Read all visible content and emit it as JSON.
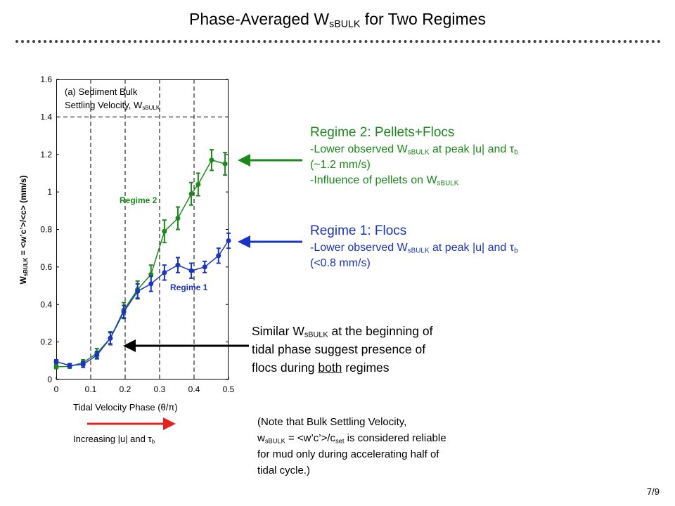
{
  "slide": {
    "title_pre": "Phase-Averaged W",
    "title_sub": "sBULK",
    "title_post": " for Two Regimes",
    "page": "7/9"
  },
  "plot": {
    "panel_line1": "(a) Sediment Bulk",
    "panel_line2_pre": "Settling Velocity, W",
    "panel_line2_sub": "sBULK",
    "ylabel_pre": "W",
    "ylabel_sub": "sBULK",
    "ylabel_post": " = <w’c’>/<c> (mm/s)",
    "xlabel": "Tidal Velocity Phase (θ/π)",
    "regime2_label": "Regime 2",
    "regime1_label": "Regime 1",
    "increasing_pre": "Increasing |u| and τ",
    "increasing_sub": "b"
  },
  "callouts": {
    "regime2": {
      "head": "Regime 2: Pellets+Flocs",
      "l1_pre": "-Lower observed W",
      "l1_sub": "sBULK",
      "l1_post": "  at peak |u| and τ",
      "l1_sub2": "b",
      "l2": "(~1.2 mm/s)",
      "l3_pre": "-Influence of pellets on W",
      "l3_sub": "sBULK"
    },
    "regime1": {
      "head": "Regime 1: Flocs",
      "l1_pre": "-Lower observed W",
      "l1_sub": "sBULK",
      "l1_post": "  at peak |u| and τ",
      "l1_sub2": "b",
      "l2": "(<0.8 mm/s)"
    },
    "similar": {
      "l1_pre": "Similar W",
      "l1_sub": "sBULK",
      "l1_post": "  at the beginning of",
      "l2": "tidal phase suggest presence of",
      "l3_pre": "flocs during ",
      "l3_under": "both",
      "l3_post": " regimes"
    },
    "note": {
      "l1": "(Note that Bulk Settling Velocity,",
      "l2_pre": "w",
      "l2_sub": "sBULK",
      "l2_mid": " = <w’c’>/c",
      "l2_sub2": "set",
      "l2_post": "  is considered reliable",
      "l3": "for mud only during accelerating half of",
      "l4": "tidal cycle.)"
    }
  },
  "colors": {
    "regime1": "#1b33c4",
    "regime2": "#1a8a1a",
    "red_arrow": "#e82020",
    "black_arrow": "#000000"
  },
  "chart_data": {
    "type": "line",
    "xlim": [
      0,
      0.5
    ],
    "ylim": [
      0,
      1.6
    ],
    "xticks": [
      "0",
      "0.1",
      "0.2",
      "0.3",
      "0.4",
      "0.5"
    ],
    "yticks": [
      "0",
      "0.2",
      "0.4",
      "0.6",
      "0.8",
      "1",
      "1.2",
      "1.4",
      "1.6"
    ],
    "grid": "dashed vertical at 0.1–0.4, dashed horizontal at 1.4",
    "series": [
      {
        "name": "Regime 2",
        "color": "#1a8a1a",
        "x": [
          0,
          0.039,
          0.078,
          0.118,
          0.157,
          0.196,
          0.236,
          0.275,
          0.314,
          0.353,
          0.392,
          0.412,
          0.451,
          0.49
        ],
        "y": [
          0.068,
          0.07,
          0.09,
          0.14,
          0.22,
          0.37,
          0.48,
          0.56,
          0.79,
          0.86,
          0.99,
          1.04,
          1.17,
          1.15
        ],
        "err": [
          0.01,
          0.01,
          0.015,
          0.025,
          0.035,
          0.04,
          0.045,
          0.05,
          0.06,
          0.06,
          0.06,
          0.06,
          0.055,
          0.06
        ]
      },
      {
        "name": "Regime 1",
        "color": "#1b33c4",
        "x": [
          0,
          0.039,
          0.078,
          0.118,
          0.157,
          0.196,
          0.236,
          0.275,
          0.314,
          0.353,
          0.392,
          0.431,
          0.471,
          0.5
        ],
        "y": [
          0.095,
          0.075,
          0.08,
          0.13,
          0.22,
          0.36,
          0.47,
          0.51,
          0.57,
          0.61,
          0.58,
          0.6,
          0.66,
          0.74
        ],
        "err": [
          0.01,
          0.01,
          0.015,
          0.02,
          0.03,
          0.035,
          0.04,
          0.04,
          0.04,
          0.04,
          0.04,
          0.03,
          0.04,
          0.04
        ]
      }
    ]
  }
}
